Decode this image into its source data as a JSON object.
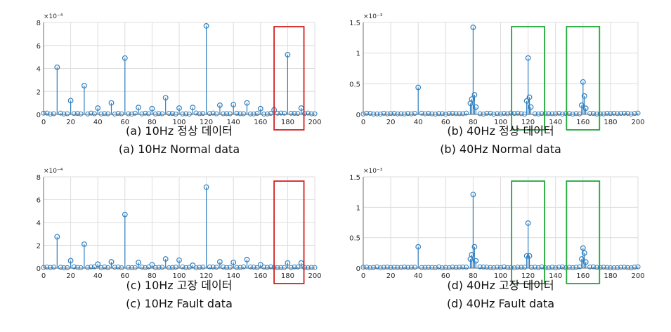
{
  "colors": {
    "stem": "#2f7fc0",
    "grid": "#dcdcdc",
    "axis": "#6b6b6b",
    "red_box": "#d62020",
    "green_box": "#1fa83a"
  },
  "chart_data": [
    {
      "type": "stem",
      "caption_ko": "(a) 10Hz 정상 데이터",
      "caption_en": "(a) 10Hz Normal data",
      "exponent": "×10⁻⁴",
      "xlim": [
        0,
        200
      ],
      "ylim": [
        0,
        8
      ],
      "xticks": [
        0,
        20,
        40,
        60,
        80,
        100,
        120,
        140,
        160,
        180,
        200
      ],
      "yticks": [
        0,
        2,
        4,
        6,
        8
      ],
      "peaks": [
        {
          "x": 10,
          "y": 4.1
        },
        {
          "x": 20,
          "y": 1.2
        },
        {
          "x": 30,
          "y": 2.5
        },
        {
          "x": 40,
          "y": 0.55
        },
        {
          "x": 50,
          "y": 1.0
        },
        {
          "x": 60,
          "y": 4.9
        },
        {
          "x": 70,
          "y": 0.6
        },
        {
          "x": 80,
          "y": 0.5
        },
        {
          "x": 90,
          "y": 1.45
        },
        {
          "x": 100,
          "y": 0.55
        },
        {
          "x": 110,
          "y": 0.6
        },
        {
          "x": 120,
          "y": 7.7
        },
        {
          "x": 130,
          "y": 0.8
        },
        {
          "x": 140,
          "y": 0.85
        },
        {
          "x": 150,
          "y": 1.0
        },
        {
          "x": 160,
          "y": 0.5
        },
        {
          "x": 170,
          "y": 0.4
        },
        {
          "x": 180,
          "y": 5.2
        },
        {
          "x": 190,
          "y": 0.55
        }
      ],
      "boxes": [
        {
          "x_range": [
            170,
            192
          ],
          "color": "red"
        }
      ]
    },
    {
      "type": "stem",
      "caption_ko": "(b) 40Hz 정상 데이터",
      "caption_en": "(b) 40Hz Normal data",
      "exponent": "×10⁻³",
      "xlim": [
        0,
        200
      ],
      "ylim": [
        0,
        1.5
      ],
      "xticks": [
        0,
        20,
        40,
        60,
        80,
        100,
        120,
        140,
        160,
        180,
        200
      ],
      "yticks": [
        0,
        0.5,
        1,
        1.5
      ],
      "peaks": [
        {
          "x": 40,
          "y": 0.44
        },
        {
          "x": 78,
          "y": 0.18
        },
        {
          "x": 79,
          "y": 0.25
        },
        {
          "x": 80,
          "y": 1.42
        },
        {
          "x": 81,
          "y": 0.32
        },
        {
          "x": 82,
          "y": 0.12
        },
        {
          "x": 119,
          "y": 0.22
        },
        {
          "x": 120,
          "y": 0.92
        },
        {
          "x": 121,
          "y": 0.28
        },
        {
          "x": 122,
          "y": 0.12
        },
        {
          "x": 159,
          "y": 0.15
        },
        {
          "x": 160,
          "y": 0.53
        },
        {
          "x": 161,
          "y": 0.3
        },
        {
          "x": 162,
          "y": 0.1
        }
      ],
      "boxes": [
        {
          "x_range": [
            108,
            132
          ],
          "color": "green"
        },
        {
          "x_range": [
            148,
            172
          ],
          "color": "green"
        }
      ]
    },
    {
      "type": "stem",
      "caption_ko": "(c) 10Hz 고장 데이터",
      "caption_en": "(c) 10Hz Fault data",
      "exponent": "×10⁻⁴",
      "xlim": [
        0,
        200
      ],
      "ylim": [
        0,
        8
      ],
      "xticks": [
        0,
        20,
        40,
        60,
        80,
        100,
        120,
        140,
        160,
        180,
        200
      ],
      "yticks": [
        0,
        2,
        4,
        6,
        8
      ],
      "peaks": [
        {
          "x": 10,
          "y": 2.75
        },
        {
          "x": 20,
          "y": 0.65
        },
        {
          "x": 30,
          "y": 2.1
        },
        {
          "x": 40,
          "y": 0.35
        },
        {
          "x": 50,
          "y": 0.55
        },
        {
          "x": 60,
          "y": 4.7
        },
        {
          "x": 70,
          "y": 0.5
        },
        {
          "x": 80,
          "y": 0.3
        },
        {
          "x": 90,
          "y": 0.8
        },
        {
          "x": 100,
          "y": 0.7
        },
        {
          "x": 110,
          "y": 0.25
        },
        {
          "x": 120,
          "y": 7.1
        },
        {
          "x": 130,
          "y": 0.55
        },
        {
          "x": 140,
          "y": 0.5
        },
        {
          "x": 150,
          "y": 0.75
        },
        {
          "x": 160,
          "y": 0.3
        },
        {
          "x": 180,
          "y": 0.45
        },
        {
          "x": 190,
          "y": 0.45
        }
      ],
      "boxes": [
        {
          "x_range": [
            170,
            192
          ],
          "color": "red"
        }
      ]
    },
    {
      "type": "stem",
      "caption_ko": "(d) 40Hz 고장 데이터",
      "caption_en": "(d) 40Hz Fault data",
      "exponent": "×10⁻³",
      "xlim": [
        0,
        200
      ],
      "ylim": [
        0,
        1.5
      ],
      "xticks": [
        0,
        20,
        40,
        60,
        80,
        100,
        120,
        140,
        160,
        180,
        200
      ],
      "yticks": [
        0,
        0.5,
        1,
        1.5
      ],
      "peaks": [
        {
          "x": 40,
          "y": 0.35
        },
        {
          "x": 78,
          "y": 0.15
        },
        {
          "x": 79,
          "y": 0.22
        },
        {
          "x": 80,
          "y": 1.21
        },
        {
          "x": 81,
          "y": 0.35
        },
        {
          "x": 82,
          "y": 0.12
        },
        {
          "x": 119,
          "y": 0.2
        },
        {
          "x": 120,
          "y": 0.74
        },
        {
          "x": 121,
          "y": 0.2
        },
        {
          "x": 159,
          "y": 0.15
        },
        {
          "x": 160,
          "y": 0.33
        },
        {
          "x": 161,
          "y": 0.25
        },
        {
          "x": 162,
          "y": 0.1
        }
      ],
      "boxes": [
        {
          "x_range": [
            108,
            132
          ],
          "color": "green"
        },
        {
          "x_range": [
            148,
            172
          ],
          "color": "green"
        }
      ]
    }
  ]
}
